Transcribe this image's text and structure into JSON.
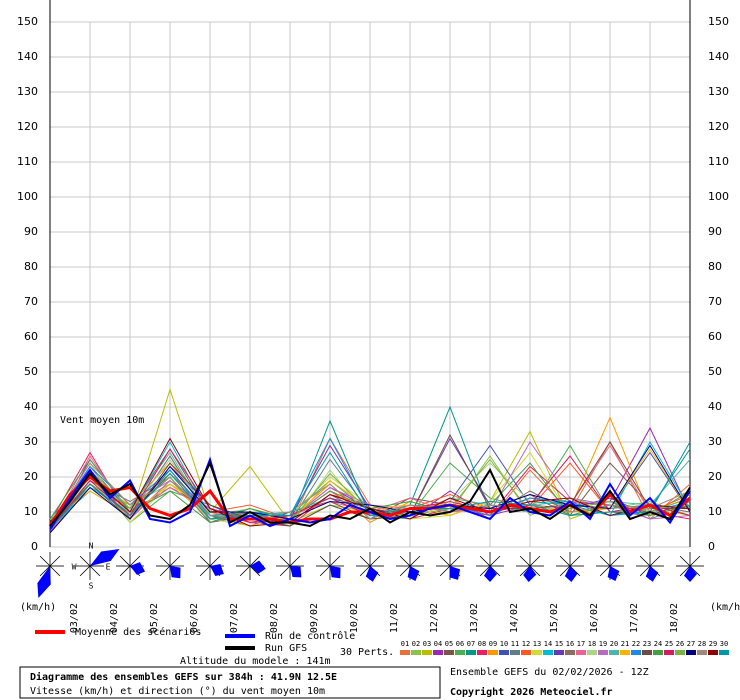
{
  "chart_data": {
    "type": "line",
    "title": "Diagramme des ensembles GEFS sur 384h : 41.9N 12.5E",
    "subtitle": "Vitesse (km/h) et direction (°) du vent moyen 10m",
    "annotation": "Vent moyen 10m",
    "y_unit": "(km/h)",
    "altitude": "Altitude du modele : 141m",
    "perturbation_count": "30 Perts.",
    "run_info": "Ensemble GEFS du 02/02/2026 - 12Z",
    "copyright": "Copyright 2026 Meteociel.fr",
    "compass": [
      "N",
      "W",
      "E",
      "S"
    ],
    "xlim": [
      0,
      384
    ],
    "xticks": [
      {
        "value": 12,
        "label": "03/02"
      },
      {
        "value": 36,
        "label": "04/02"
      },
      {
        "value": 60,
        "label": "05/02"
      },
      {
        "value": 84,
        "label": "06/02"
      },
      {
        "value": 108,
        "label": "07/02"
      },
      {
        "value": 132,
        "label": "08/02"
      },
      {
        "value": 156,
        "label": "09/02"
      },
      {
        "value": 180,
        "label": "10/02"
      },
      {
        "value": 204,
        "label": "11/02"
      },
      {
        "value": 228,
        "label": "12/02"
      },
      {
        "value": 252,
        "label": "13/02"
      },
      {
        "value": 276,
        "label": "14/02"
      },
      {
        "value": 300,
        "label": "15/02"
      },
      {
        "value": 324,
        "label": "16/02"
      },
      {
        "value": 348,
        "label": "17/02"
      },
      {
        "value": 372,
        "label": "18/02"
      }
    ],
    "ylim": [
      0,
      150
    ],
    "yticks": [
      0,
      10,
      20,
      30,
      40,
      50,
      60,
      70,
      80,
      90,
      100,
      110,
      120,
      130,
      140,
      150
    ],
    "grid": true,
    "x_main": [
      0,
      12,
      24,
      36,
      48,
      60,
      72,
      84,
      96,
      108,
      120,
      132,
      144,
      156,
      168,
      180,
      192,
      204,
      216,
      228,
      240,
      252,
      264,
      276,
      288,
      300,
      312,
      324,
      336,
      348,
      360,
      372,
      384
    ],
    "x_pert": [
      0,
      24,
      48,
      72,
      96,
      120,
      144,
      168,
      192,
      216,
      240,
      264,
      288,
      312,
      336,
      360,
      384
    ],
    "main_series": [
      {
        "name": "Moyenne des scénarios",
        "color": "#ff0000",
        "width": 3,
        "values": [
          6,
          15,
          20,
          16,
          17,
          11,
          9,
          11,
          16,
          8,
          8,
          8,
          7,
          8,
          8,
          10,
          10,
          9,
          11,
          11,
          12,
          11,
          10,
          12,
          11,
          10,
          12,
          9,
          15,
          10,
          12,
          9,
          14
        ]
      },
      {
        "name": "Run de contrôle",
        "color": "#0000ff",
        "width": 2,
        "values": [
          5,
          14,
          22,
          14,
          19,
          8,
          7,
          10,
          25,
          6,
          9,
          6,
          8,
          7,
          8,
          12,
          10,
          8,
          9,
          11,
          12,
          10,
          8,
          14,
          10,
          9,
          13,
          8,
          18,
          9,
          14,
          7,
          16
        ]
      },
      {
        "name": "Run GFS",
        "color": "#000000",
        "width": 2,
        "values": [
          6,
          13,
          21,
          15,
          18,
          9,
          8,
          12,
          24,
          7,
          10,
          7,
          7,
          6,
          9,
          8,
          11,
          7,
          10,
          9,
          10,
          13,
          22,
          10,
          11,
          8,
          12,
          9,
          16,
          8,
          10,
          8,
          17
        ]
      }
    ],
    "series": [
      {
        "name": "01",
        "color": "#e8703a",
        "values": [
          5,
          22,
          9,
          26,
          8,
          10,
          6,
          31,
          12,
          9,
          14,
          8,
          22,
          10,
          30,
          8,
          18
        ]
      },
      {
        "name": "02",
        "color": "#8bc34a",
        "values": [
          7,
          17,
          12,
          18,
          11,
          7,
          9,
          14,
          9,
          12,
          10,
          26,
          9,
          14,
          11,
          13,
          9
        ]
      },
      {
        "name": "03",
        "color": "#bdbd00",
        "values": [
          6,
          20,
          8,
          45,
          10,
          23,
          7,
          12,
          10,
          11,
          9,
          13,
          33,
          8,
          12,
          10,
          14
        ]
      },
      {
        "name": "04",
        "color": "#9c27b0",
        "values": [
          4,
          25,
          10,
          20,
          7,
          9,
          8,
          17,
          11,
          8,
          16,
          9,
          12,
          11,
          13,
          34,
          10
        ]
      },
      {
        "name": "05",
        "color": "#795548",
        "values": [
          8,
          18,
          11,
          28,
          9,
          6,
          10,
          13,
          8,
          14,
          12,
          11,
          15,
          9,
          24,
          12,
          11
        ]
      },
      {
        "name": "06",
        "color": "#4caf50",
        "values": [
          5,
          21,
          7,
          16,
          12,
          8,
          9,
          19,
          10,
          9,
          24,
          14,
          11,
          29,
          10,
          9,
          16
        ]
      },
      {
        "name": "07",
        "color": "#009688",
        "values": [
          6,
          16,
          9,
          22,
          8,
          11,
          7,
          36,
          9,
          12,
          40,
          10,
          13,
          12,
          9,
          11,
          28
        ]
      },
      {
        "name": "08",
        "color": "#e91e63",
        "values": [
          7,
          27,
          8,
          19,
          10,
          7,
          6,
          15,
          12,
          8,
          11,
          9,
          23,
          13,
          12,
          10,
          8
        ]
      },
      {
        "name": "09",
        "color": "#ff9800",
        "values": [
          5,
          19,
          12,
          24,
          9,
          10,
          8,
          18,
          7,
          13,
          10,
          12,
          10,
          11,
          37,
          9,
          13
        ]
      },
      {
        "name": "10",
        "color": "#3f51b5",
        "values": [
          6,
          23,
          10,
          17,
          11,
          8,
          9,
          14,
          11,
          9,
          13,
          29,
          12,
          10,
          11,
          27,
          10
        ]
      },
      {
        "name": "11",
        "color": "#607d8b",
        "values": [
          8,
          20,
          9,
          26,
          7,
          9,
          7,
          25,
          10,
          10,
          12,
          10,
          14,
          12,
          13,
          8,
          12
        ]
      },
      {
        "name": "12",
        "color": "#ff5722",
        "values": [
          4,
          18,
          11,
          21,
          10,
          12,
          8,
          16,
          9,
          11,
          15,
          11,
          11,
          24,
          10,
          10,
          15
        ]
      },
      {
        "name": "13",
        "color": "#cddc39",
        "values": [
          6,
          24,
          7,
          18,
          8,
          6,
          9,
          20,
          12,
          8,
          9,
          13,
          27,
          9,
          12,
          11,
          9
        ]
      },
      {
        "name": "14",
        "color": "#00bcd4",
        "values": [
          5,
          17,
          10,
          30,
          9,
          9,
          6,
          12,
          8,
          12,
          11,
          10,
          12,
          13,
          9,
          30,
          11
        ]
      },
      {
        "name": "15",
        "color": "#673ab7",
        "values": [
          7,
          22,
          8,
          23,
          12,
          7,
          8,
          29,
          11,
          9,
          31,
          12,
          10,
          11,
          14,
          9,
          13
        ]
      },
      {
        "name": "16",
        "color": "#8d6e63",
        "values": [
          6,
          19,
          13,
          20,
          7,
          10,
          7,
          15,
          9,
          10,
          12,
          9,
          16,
          10,
          11,
          12,
          10
        ]
      },
      {
        "name": "17",
        "color": "#f06292",
        "values": [
          5,
          26,
          9,
          17,
          10,
          8,
          9,
          13,
          10,
          14,
          10,
          11,
          11,
          12,
          29,
          10,
          14
        ]
      },
      {
        "name": "18",
        "color": "#aed581",
        "values": [
          8,
          18,
          10,
          25,
          9,
          11,
          6,
          22,
          8,
          9,
          13,
          24,
          13,
          9,
          10,
          11,
          12
        ]
      },
      {
        "name": "19",
        "color": "#ba68c8",
        "values": [
          4,
          21,
          8,
          19,
          11,
          7,
          8,
          17,
          12,
          11,
          11,
          10,
          30,
          14,
          12,
          8,
          9
        ]
      },
      {
        "name": "20",
        "color": "#4db6ac",
        "values": [
          6,
          20,
          11,
          27,
          8,
          9,
          10,
          14,
          9,
          8,
          14,
          12,
          10,
          11,
          13,
          12,
          25
        ]
      },
      {
        "name": "21",
        "color": "#ffb300",
        "values": [
          7,
          16,
          9,
          18,
          10,
          6,
          7,
          19,
          11,
          12,
          9,
          13,
          12,
          10,
          11,
          28,
          10
        ]
      },
      {
        "name": "22",
        "color": "#1e88e5",
        "values": [
          5,
          23,
          12,
          22,
          9,
          10,
          9,
          31,
          10,
          10,
          12,
          9,
          14,
          13,
          9,
          10,
          13
        ]
      },
      {
        "name": "23",
        "color": "#6d4c41",
        "values": [
          6,
          18,
          8,
          24,
          12,
          8,
          6,
          12,
          8,
          9,
          32,
          11,
          11,
          12,
          30,
          11,
          11
        ]
      },
      {
        "name": "24",
        "color": "#43a047",
        "values": [
          8,
          25,
          10,
          16,
          7,
          11,
          8,
          16,
          11,
          13,
          10,
          12,
          24,
          9,
          12,
          9,
          12
        ]
      },
      {
        "name": "25",
        "color": "#d81b60",
        "values": [
          5,
          19,
          9,
          28,
          11,
          7,
          9,
          14,
          9,
          11,
          13,
          10,
          12,
          26,
          10,
          12,
          9
        ]
      },
      {
        "name": "26",
        "color": "#7cb342",
        "values": [
          7,
          22,
          11,
          20,
          8,
          9,
          7,
          21,
          10,
          9,
          11,
          25,
          10,
          11,
          13,
          10,
          14
        ]
      },
      {
        "name": "27",
        "color": "#000080",
        "values": [
          4,
          17,
          8,
          23,
          10,
          10,
          8,
          13,
          12,
          10,
          12,
          11,
          15,
          12,
          11,
          29,
          10
        ]
      },
      {
        "name": "28",
        "color": "#a1887f",
        "values": [
          6,
          24,
          12,
          19,
          9,
          8,
          10,
          18,
          8,
          12,
          10,
          12,
          11,
          10,
          12,
          11,
          16
        ]
      },
      {
        "name": "29",
        "color": "#8e0000",
        "values": [
          7,
          20,
          10,
          31,
          11,
          6,
          7,
          15,
          11,
          8,
          14,
          10,
          13,
          14,
          9,
          12,
          11
        ]
      },
      {
        "name": "30",
        "color": "#0097a7",
        "values": [
          5,
          18,
          9,
          21,
          8,
          9,
          9,
          27,
          9,
          11,
          11,
          13,
          12,
          9,
          10,
          10,
          30
        ]
      }
    ]
  }
}
